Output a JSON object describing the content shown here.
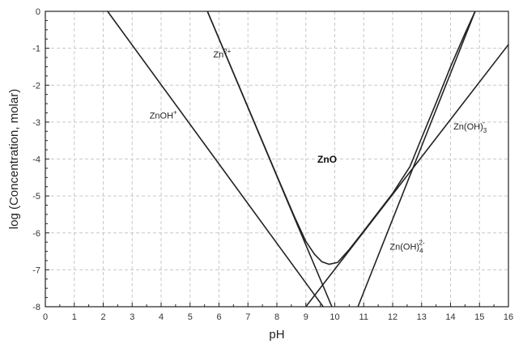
{
  "chart_data": {
    "type": "line",
    "title": "",
    "xlabel": "pH",
    "ylabel": "log (Concentration, molar)",
    "xlim": [
      0,
      16
    ],
    "ylim": [
      -8,
      0
    ],
    "x_ticks": [
      0,
      1,
      2,
      3,
      4,
      5,
      6,
      7,
      8,
      9,
      10,
      11,
      12,
      13,
      14,
      15,
      16
    ],
    "y_ticks": [
      0,
      -1,
      -2,
      -3,
      -4,
      -5,
      -6,
      -7,
      -8
    ],
    "grid": true,
    "legend": "none",
    "line_color": "#222222",
    "grid_color": "#c8c8c8",
    "series": [
      {
        "x": [
          5.6,
          9.9
        ],
        "y": [
          0,
          -8
        ]
      },
      {
        "x": [
          2.15,
          9.6
        ],
        "y": [
          0,
          -8
        ]
      },
      {
        "x": [
          9.0,
          16.0
        ],
        "y": [
          -8,
          -0.9
        ]
      },
      {
        "x": [
          10.8,
          14.85
        ],
        "y": [
          -8,
          0
        ]
      },
      {
        "x": [
          5.6,
          8.0,
          8.6,
          9.0,
          9.3,
          9.55,
          9.8,
          10.1,
          10.5,
          11.0,
          12.0,
          12.6,
          13.0,
          13.5,
          14.0,
          14.5,
          14.85
        ],
        "y": [
          0,
          -4.45,
          -5.55,
          -6.23,
          -6.58,
          -6.78,
          -6.85,
          -6.8,
          -6.45,
          -5.95,
          -4.93,
          -4.2,
          -3.43,
          -2.48,
          -1.5,
          -0.6,
          0
        ]
      }
    ],
    "annotations": [
      {
        "base": "Zn",
        "sup": "2+",
        "x": 5.8,
        "y": -1.25
      },
      {
        "base": "ZnOH",
        "sup": "+",
        "x": 3.6,
        "y": -2.9
      },
      {
        "base": "ZnO",
        "x": 9.4,
        "y": -4.1,
        "bold": true
      },
      {
        "base": "Zn(OH)",
        "sub": "3",
        "sup": "-",
        "x": 14.1,
        "y": -3.2
      },
      {
        "base": "Zn(OH)",
        "sub": "4",
        "sup": "2-",
        "x": 11.9,
        "y": -6.45
      }
    ]
  }
}
